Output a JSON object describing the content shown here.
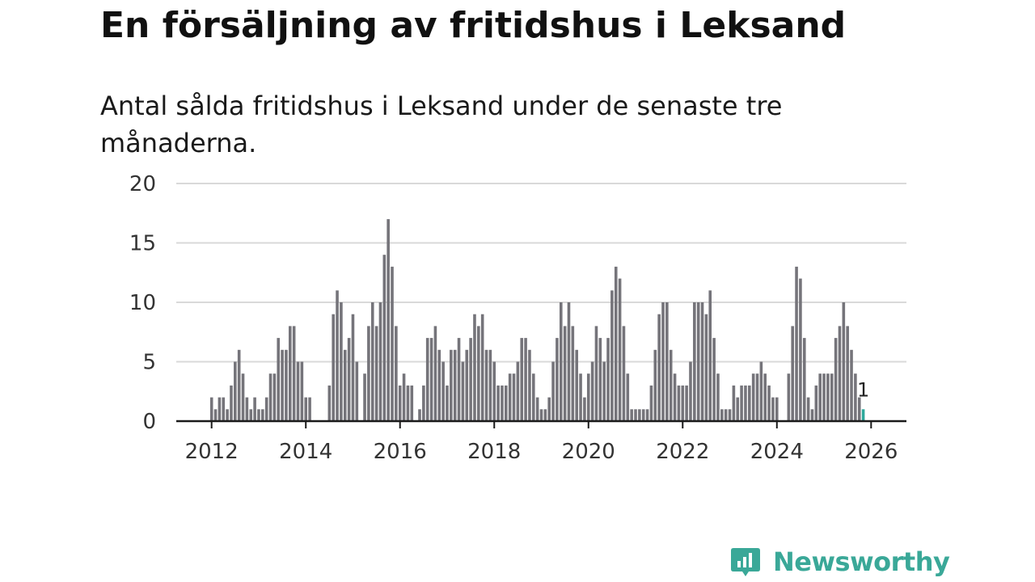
{
  "title": "En försäljning av fritidshus i Leksand",
  "subtitle": "Antal sålda fritidshus i Leksand under de senaste tre månaderna.",
  "brand": {
    "name": "Newsworthy",
    "icon": "newsworthy-logo-icon"
  },
  "colors": {
    "bar": "#75747a",
    "highlight": "#2ea89b",
    "grid": "#d9d9d9",
    "axis": "#1a1a1a",
    "brand": "#3aa898"
  },
  "chart_data": {
    "type": "bar",
    "title": "En försäljning av fritidshus i Leksand",
    "xlabel": "",
    "ylabel": "",
    "ylim": [
      0,
      20
    ],
    "yticks": [
      0,
      5,
      10,
      15,
      20
    ],
    "xlim": [
      2011.25,
      2026.75
    ],
    "xticks": [
      2012,
      2014,
      2016,
      2018,
      2020,
      2022,
      2024,
      2026
    ],
    "bar_interval": "month",
    "x_start": {
      "year": 2012,
      "month": 1
    },
    "values": [
      2,
      1,
      2,
      2,
      1,
      3,
      5,
      6,
      4,
      2,
      1,
      2,
      1,
      1,
      2,
      4,
      4,
      7,
      6,
      6,
      8,
      8,
      5,
      5,
      2,
      2,
      0,
      0,
      0,
      0,
      3,
      9,
      11,
      10,
      6,
      7,
      9,
      5,
      0,
      4,
      8,
      10,
      8,
      10,
      14,
      17,
      13,
      8,
      3,
      4,
      3,
      3,
      0,
      1,
      3,
      7,
      7,
      8,
      6,
      5,
      3,
      6,
      6,
      7,
      5,
      6,
      7,
      9,
      8,
      9,
      6,
      6,
      5,
      3,
      3,
      3,
      4,
      4,
      5,
      7,
      7,
      6,
      4,
      2,
      1,
      1,
      2,
      5,
      7,
      10,
      8,
      10,
      8,
      6,
      4,
      2,
      4,
      5,
      8,
      7,
      5,
      7,
      11,
      13,
      12,
      8,
      4,
      1,
      1,
      1,
      1,
      1,
      3,
      6,
      9,
      10,
      10,
      6,
      4,
      3,
      3,
      3,
      5,
      10,
      10,
      10,
      9,
      11,
      7,
      4,
      1,
      1,
      1,
      3,
      2,
      3,
      3,
      3,
      4,
      4,
      5,
      4,
      3,
      2,
      2,
      0,
      0,
      4,
      8,
      13,
      12,
      7,
      2,
      1,
      3,
      4,
      4,
      4,
      4,
      7,
      8,
      10,
      8,
      6,
      4,
      2,
      1
    ],
    "annotations": [
      {
        "label": "1",
        "x": "2026-01",
        "value": 1
      }
    ]
  }
}
